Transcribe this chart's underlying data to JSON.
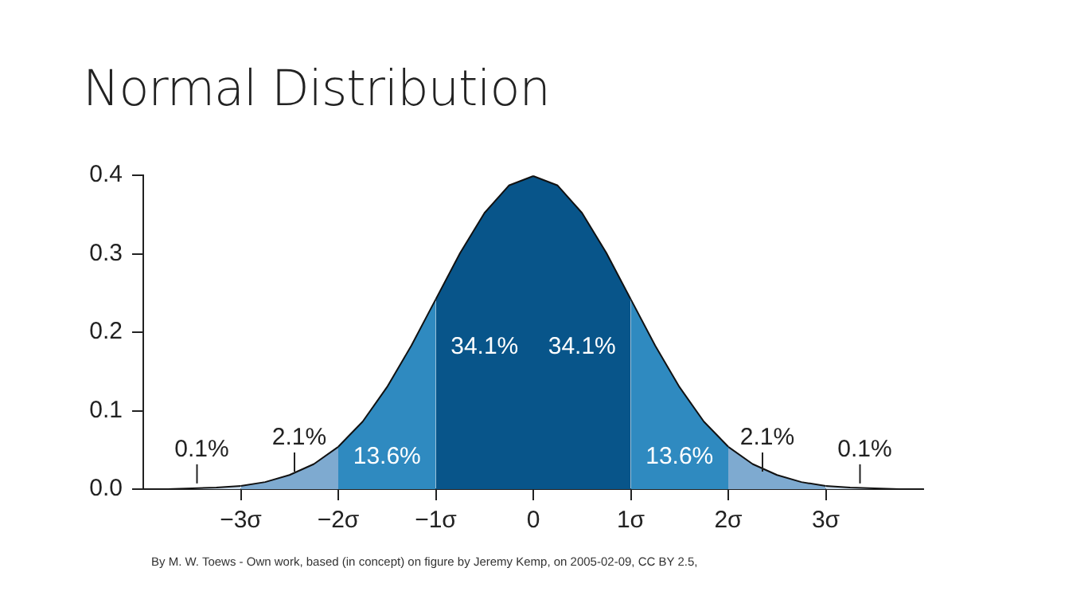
{
  "chart_data": {
    "type": "area",
    "title": "Normal Distribution",
    "xlim": [
      -4,
      4
    ],
    "ylim": [
      0,
      0.4
    ],
    "xticks": [
      {
        "value": -3,
        "label": "−3σ"
      },
      {
        "value": -2,
        "label": "−2σ"
      },
      {
        "value": -1,
        "label": "−1σ"
      },
      0,
      {
        "value": 1,
        "label": "1σ"
      },
      {
        "value": 2,
        "label": "2σ"
      },
      {
        "value": 3,
        "label": "3σ"
      }
    ],
    "yticks": [
      {
        "value": 0,
        "label": "0.0"
      },
      0.1,
      0.2,
      0.3,
      0.4
    ],
    "grid": false,
    "legend": false,
    "marker": "none",
    "series": [
      {
        "color": "#c9daea",
        "x": [
          -4,
          -3.75,
          -3.5,
          -3.25,
          -3
        ],
        "values": [
          0.0,
          0.0,
          0.001,
          0.002,
          0.004
        ]
      },
      {
        "color": "#7eaad0",
        "x": [
          -3,
          -2.75,
          -2.5,
          -2.25,
          -2
        ],
        "values": [
          0.004,
          0.009,
          0.018,
          0.032,
          0.054
        ]
      },
      {
        "color": "#2f8ac0",
        "x": [
          -2,
          -1.75,
          -1.5,
          -1.25,
          -1
        ],
        "values": [
          0.054,
          0.086,
          0.13,
          0.183,
          0.242
        ]
      },
      {
        "color": "#08558a",
        "x": [
          -1,
          -0.75,
          -0.5,
          -0.25,
          0
        ],
        "values": [
          0.242,
          0.301,
          0.352,
          0.387,
          0.399
        ]
      },
      {
        "color": "#08558a",
        "x": [
          0,
          0.25,
          0.5,
          0.75,
          1
        ],
        "values": [
          0.399,
          0.387,
          0.352,
          0.301,
          0.242
        ]
      },
      {
        "color": "#2f8ac0",
        "x": [
          1,
          1.25,
          1.5,
          1.75,
          2
        ],
        "values": [
          0.242,
          0.183,
          0.13,
          0.086,
          0.054
        ]
      },
      {
        "color": "#7eaad0",
        "x": [
          2,
          2.25,
          2.5,
          2.75,
          3
        ],
        "values": [
          0.054,
          0.032,
          0.018,
          0.009,
          0.004
        ]
      },
      {
        "color": "#c9daea",
        "x": [
          3,
          3.25,
          3.5,
          3.75,
          4
        ],
        "values": [
          0.004,
          0.002,
          0.001,
          0.0,
          0.0
        ]
      }
    ],
    "annotations": [
      "0.1%",
      "2.1%",
      "13.6%",
      "34.1%",
      "34.1%",
      "13.6%",
      "2.1%",
      "0.1%",
      "By M. W. Toews - Own work, based (in concept) on figure by Jeremy Kemp, on 2005-02-09, CC BY 2.5,"
    ]
  }
}
